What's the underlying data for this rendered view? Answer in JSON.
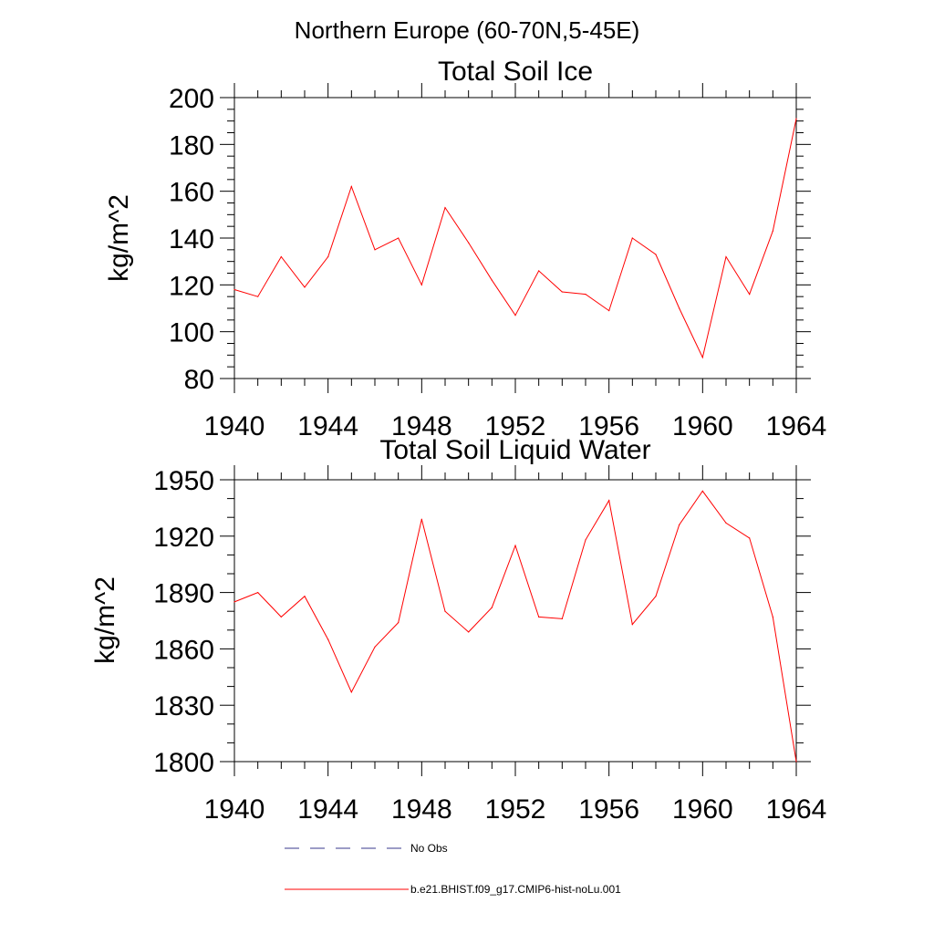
{
  "page": {
    "title": "Northern Europe (60-70N,5-45E)"
  },
  "chart_data": [
    {
      "type": "line",
      "title": "Total Soil Ice",
      "ylabel": "kg/m^2",
      "xlabel": "",
      "xlim": [
        1940,
        1964
      ],
      "ylim": [
        80,
        200
      ],
      "xticks": [
        1940,
        1944,
        1948,
        1952,
        1956,
        1960,
        1964
      ],
      "yticks": [
        80,
        100,
        120,
        140,
        160,
        180,
        200
      ],
      "series": [
        {
          "name": "b.e21.BHIST.f09_g17.CMIP6-hist-noLu.001",
          "color": "#ff0000",
          "x": [
            1940,
            1941,
            1942,
            1943,
            1944,
            1945,
            1946,
            1947,
            1948,
            1949,
            1950,
            1951,
            1952,
            1953,
            1954,
            1955,
            1956,
            1957,
            1958,
            1959,
            1960,
            1961,
            1962,
            1963,
            1964
          ],
          "y": [
            118,
            115,
            132,
            119,
            132,
            162,
            135,
            140,
            120,
            153,
            138,
            122,
            107,
            126,
            117,
            116,
            109,
            140,
            133,
            110,
            89,
            132,
            116,
            143,
            191
          ]
        }
      ]
    },
    {
      "type": "line",
      "title": "Total Soil Liquid Water",
      "ylabel": "kg/m^2",
      "xlabel": "",
      "xlim": [
        1940,
        1964
      ],
      "ylim": [
        1800,
        1950
      ],
      "xticks": [
        1940,
        1944,
        1948,
        1952,
        1956,
        1960,
        1964
      ],
      "yticks": [
        1800,
        1830,
        1860,
        1890,
        1920,
        1950
      ],
      "series": [
        {
          "name": "b.e21.BHIST.f09_g17.CMIP6-hist-noLu.001",
          "color": "#ff0000",
          "x": [
            1940,
            1941,
            1942,
            1943,
            1944,
            1945,
            1946,
            1947,
            1948,
            1949,
            1950,
            1951,
            1952,
            1953,
            1954,
            1955,
            1956,
            1957,
            1958,
            1959,
            1960,
            1961,
            1962,
            1963,
            1964
          ],
          "y": [
            1885,
            1890,
            1877,
            1888,
            1865,
            1837,
            1861,
            1874,
            1929,
            1880,
            1869,
            1882,
            1915,
            1877,
            1876,
            1918,
            1939,
            1873,
            1888,
            1926,
            1944,
            1927,
            1919,
            1877,
            1800
          ]
        }
      ]
    }
  ],
  "legend": {
    "items": [
      {
        "label": "No Obs",
        "style": "dashed",
        "color": "#3a3a8c"
      },
      {
        "label": "b.e21.BHIST.f09_g17.CMIP6-hist-noLu.001",
        "style": "solid",
        "color": "#ff0000"
      }
    ]
  }
}
